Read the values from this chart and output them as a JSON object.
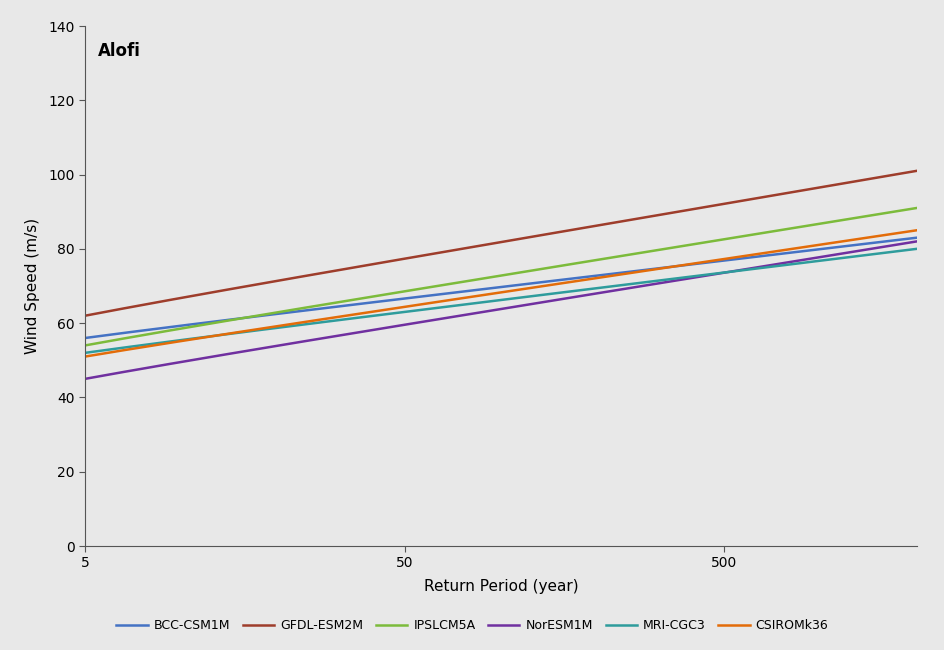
{
  "title": "Alofi",
  "xlabel": "Return Period (year)",
  "ylabel": "Wind Speed (m/s)",
  "background_color": "#e8e8e8",
  "models": [
    {
      "name": "BCC-CSM1M",
      "color": "#4472C4",
      "start": 56,
      "end": 83,
      "shape": 0.35
    },
    {
      "name": "GFDL-ESM2M",
      "color": "#9E3D2B",
      "start": 62,
      "end": 101,
      "shape": 0.35
    },
    {
      "name": "IPSLCM5A",
      "color": "#7CBB3B",
      "start": 54,
      "end": 91,
      "shape": 0.35
    },
    {
      "name": "NorESM1M",
      "color": "#7030A0",
      "start": 45,
      "end": 82,
      "shape": 0.35
    },
    {
      "name": "MRI-CGC3",
      "color": "#2E9C9C",
      "start": 52,
      "end": 80,
      "shape": 0.35
    },
    {
      "name": "CSIROMk36",
      "color": "#E36C09",
      "start": 51,
      "end": 85,
      "shape": 0.35
    }
  ],
  "xlim": [
    5,
    2000
  ],
  "ylim": [
    0,
    140
  ],
  "yticks": [
    0,
    20,
    40,
    60,
    80,
    100,
    120,
    140
  ],
  "xtick_positions": [
    5,
    50,
    500
  ],
  "xtick_labels": [
    "5",
    "50",
    "500"
  ],
  "figsize": [
    9.45,
    6.5
  ],
  "dpi": 100
}
